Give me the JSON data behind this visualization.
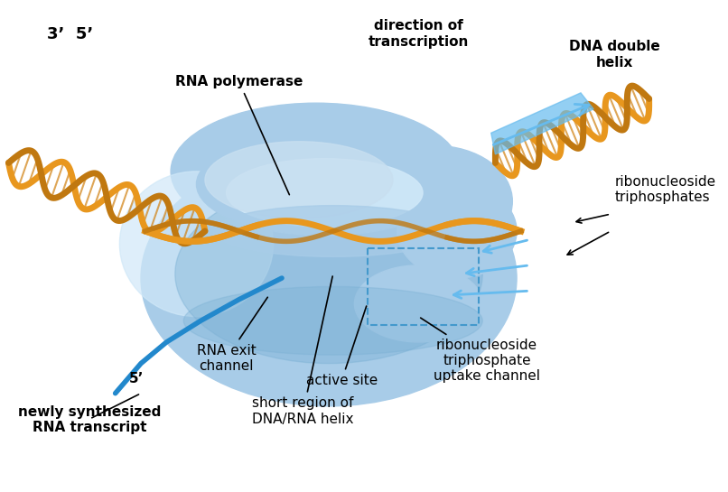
{
  "bg_color": "#ffffff",
  "figsize": [
    8.06,
    5.45
  ],
  "dpi": 100,
  "labels": {
    "top_left": "3’  5’",
    "rna_polymerase": "RNA polymerase",
    "direction": "direction of\ntranscription",
    "dna_double_helix": "DNA double\nhelix",
    "ribonucleoside_tri": "ribonucleoside\ntriphosphates",
    "rna_exit": "RNA exit\nchannel",
    "active_site": "active site",
    "short_region": "short region of\nDNA/RNA helix",
    "ribo_uptake": "ribonucleoside\ntriphosphate\nuptake channel",
    "newly_synth": "newly synthesized\nRNA transcript",
    "five_prime": "5’"
  },
  "colors": {
    "polymerase_body": "#a8cce8",
    "polymerase_dark": "#7ab0d4",
    "polymerase_light": "#d0e8f8",
    "dna_orange": "#e8971e",
    "dna_dark_orange": "#c07810",
    "rna_blue": "#2288cc",
    "arrow_blue": "#66bbee",
    "text_black": "#000000",
    "text_bold": "#000000",
    "dashed_box": "#4499cc"
  }
}
